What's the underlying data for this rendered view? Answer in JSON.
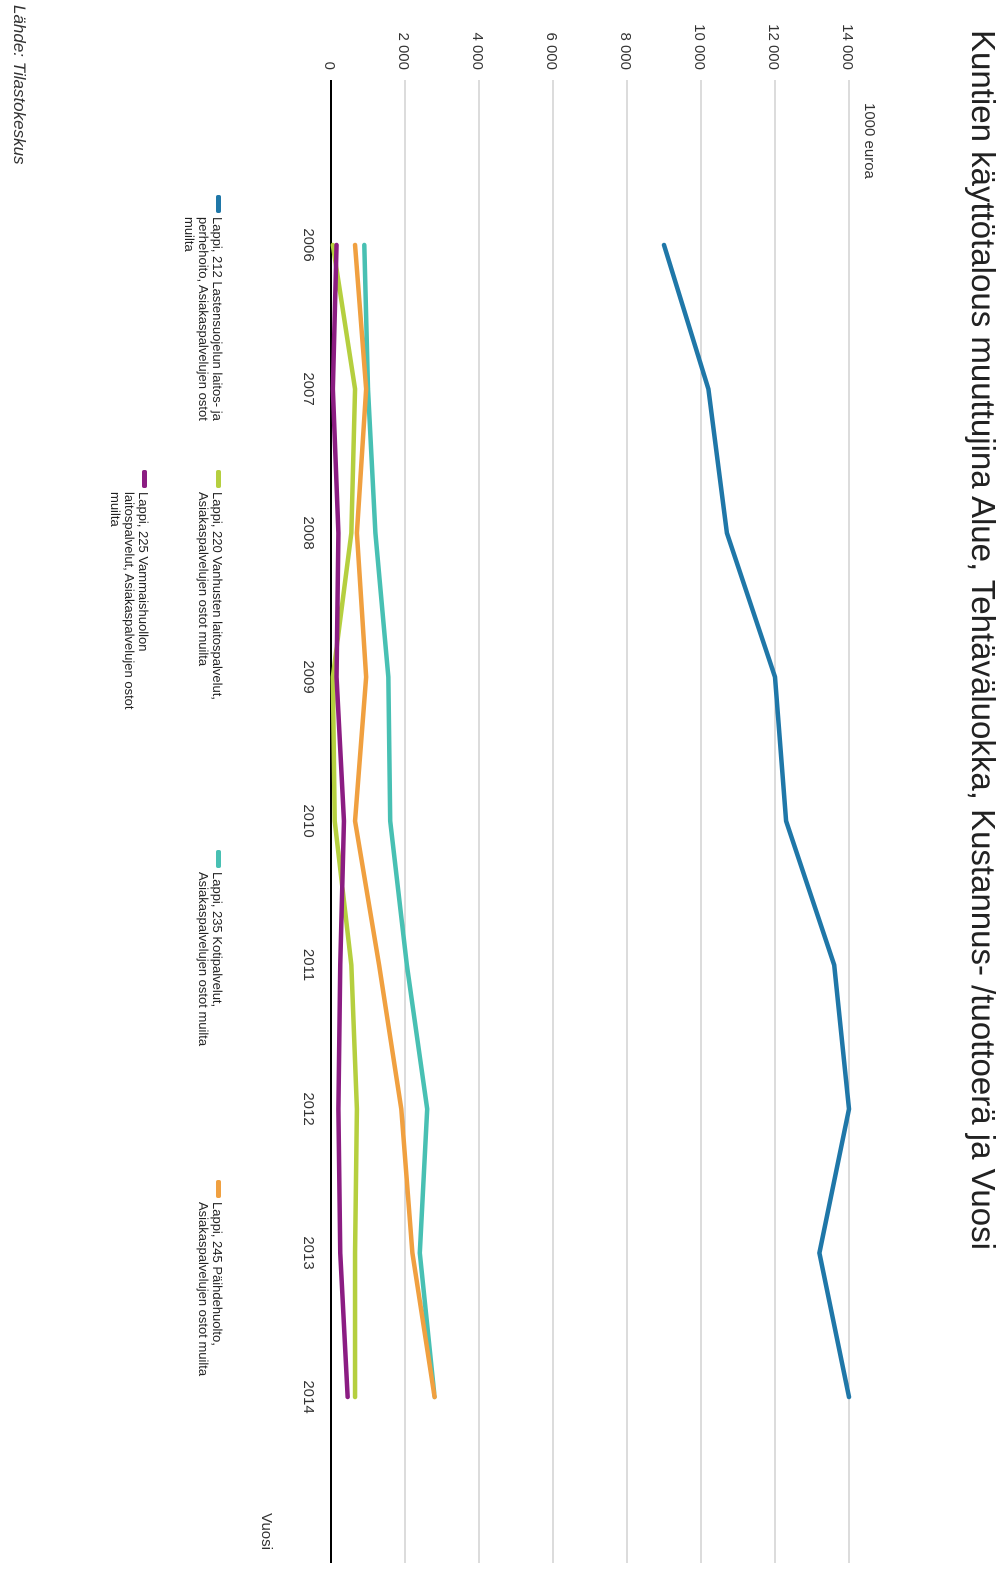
{
  "chart_data": {
    "type": "line",
    "title": "Kuntien käyttötalous muuttujina Alue, Tehtäväluokka, Kustannus- /tuottoerä ja Vuosi",
    "ylabel": "1000 euroa",
    "xlabel": "Vuosi",
    "x": [
      "2006",
      "2007",
      "2008",
      "2009",
      "2010",
      "2011",
      "2012",
      "2013",
      "2014"
    ],
    "y_ticks": [
      "0",
      "2 000",
      "4 000",
      "6 000",
      "8 000",
      "10 000",
      "12 000",
      "14 000"
    ],
    "ylim": [
      0,
      14000
    ],
    "grid": true,
    "legend_position": "bottom",
    "series": [
      {
        "name": "Lappi, 212 Lastensuojelun laitos- ja perhehoito, Asiakaspalvelujen ostot muilta",
        "color": "#1f77a8",
        "values": [
          9000,
          10200,
          10700,
          12000,
          12300,
          13600,
          14000,
          13200,
          14000
        ]
      },
      {
        "name": "Lappi, 220 Vanhusten laitospalvelut, Asiakaspalvelujen ostot muilta",
        "color": "#b5cf3f",
        "values": [
          50,
          650,
          550,
          50,
          100,
          550,
          700,
          650,
          650
        ]
      },
      {
        "name": "Lappi, 225 Vammaishuollon laitospalvelut, Asiakaspalvelujen ostot muilta",
        "color": "#8b1d82",
        "values": [
          150,
          50,
          200,
          150,
          350,
          250,
          200,
          250,
          450
        ]
      },
      {
        "name": "Lappi, 235 Kotipalvelut, Asiakaspalvelujen ostot muilta",
        "color": "#48c0b3",
        "values": [
          900,
          1000,
          1200,
          1550,
          1600,
          2050,
          2600,
          2400,
          2800
        ]
      },
      {
        "name": "Lappi, 245 Päihdehuolto, Asiakaspalvelujen ostot muilta",
        "color": "#f0a040",
        "values": [
          650,
          950,
          700,
          950,
          650,
          1300,
          1900,
          2200,
          2800
        ]
      }
    ]
  },
  "source": "Lähde: Tilastokeskus"
}
